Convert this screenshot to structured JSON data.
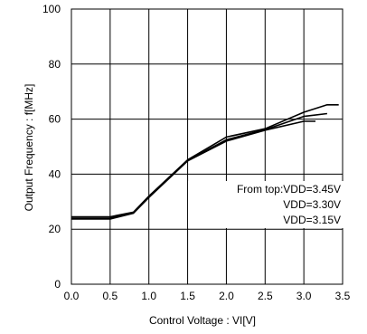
{
  "chart_data": {
    "type": "line",
    "title": "",
    "xlabel": "Control Voltage : VI[V]",
    "ylabel": "Output Frequency : f[MHz]",
    "xlim": [
      0,
      3.5
    ],
    "ylim": [
      0,
      100
    ],
    "xticks": [
      "0.0",
      "0.5",
      "1.0",
      "1.5",
      "2.0",
      "2.5",
      "3.0",
      "3.5"
    ],
    "yticks": [
      "0",
      "20",
      "40",
      "60",
      "80",
      "100"
    ],
    "grid": true,
    "series": [
      {
        "name": "VDD=3.45V",
        "x": [
          0.0,
          0.5,
          0.8,
          1.0,
          1.5,
          2.0,
          2.5,
          3.0,
          3.3,
          3.45
        ],
        "y": [
          24.5,
          24.5,
          26.2,
          32,
          45.2,
          53.5,
          56.5,
          62.5,
          65.2,
          65.2
        ]
      },
      {
        "name": "VDD=3.30V",
        "x": [
          0.0,
          0.5,
          0.8,
          1.0,
          1.5,
          2.0,
          2.5,
          3.0,
          3.3
        ],
        "y": [
          24,
          24,
          26,
          31.8,
          45,
          52.5,
          56.2,
          61,
          62
        ]
      },
      {
        "name": "VDD=3.15V",
        "x": [
          0.0,
          0.5,
          0.8,
          1.0,
          1.5,
          2.0,
          2.5,
          3.0,
          3.15
        ],
        "y": [
          23.7,
          23.7,
          25.8,
          31.5,
          44.8,
          52,
          56,
          59.2,
          59.2
        ]
      }
    ],
    "annotation": {
      "line1": "From top:VDD=3.45V",
      "line2": "VDD=3.30V",
      "line3": "VDD=3.15V"
    }
  }
}
